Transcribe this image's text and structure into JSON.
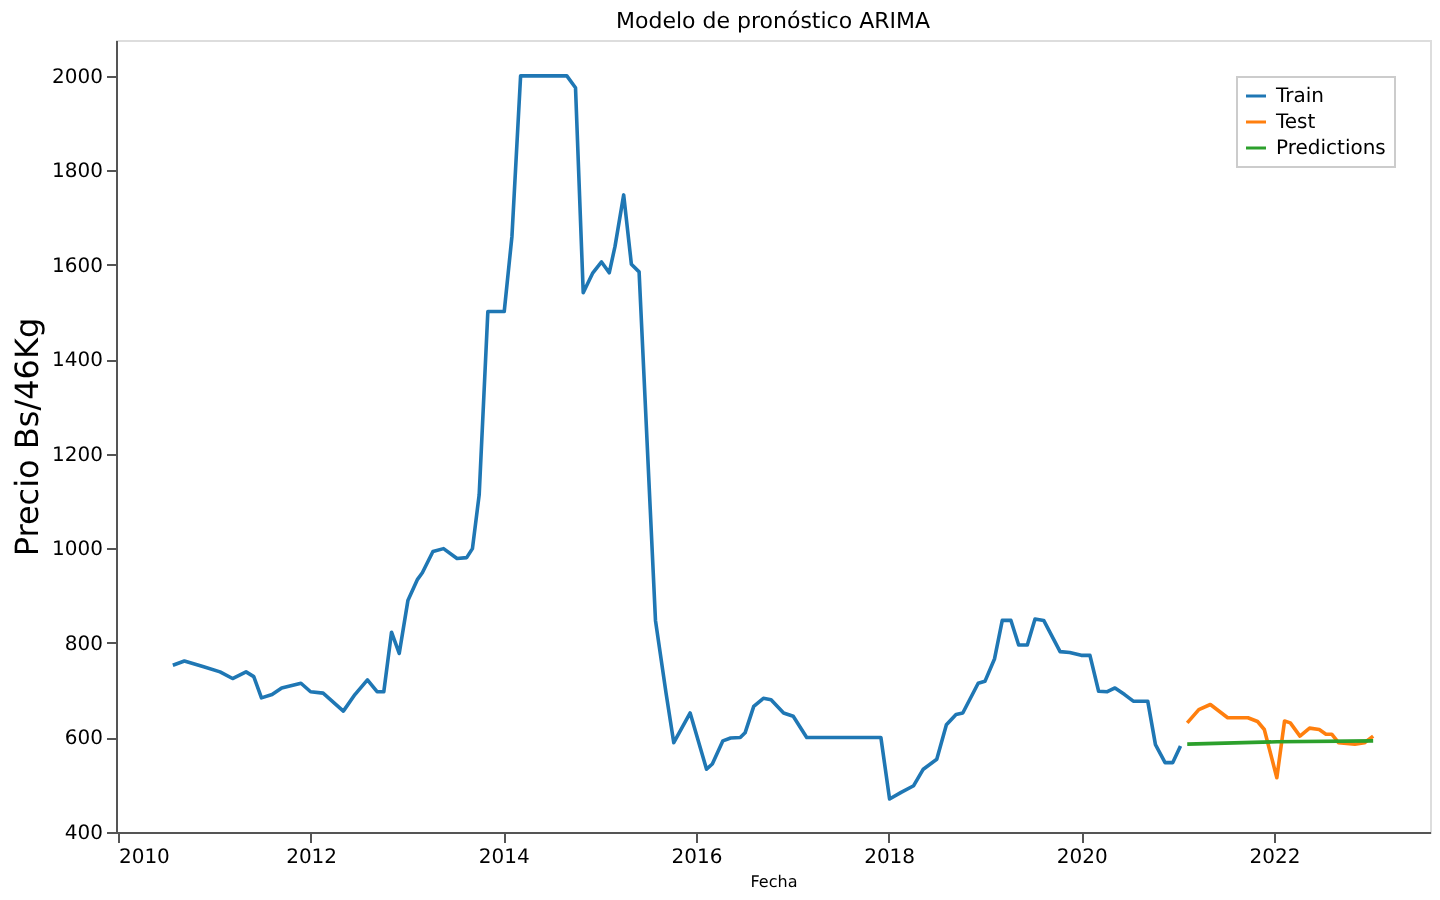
{
  "chart_data": {
    "type": "line",
    "title": "Modelo de pronóstico ARIMA",
    "xlabel": "Fecha",
    "ylabel": "Precio Bs/46Kg",
    "xlim": [
      2009.98,
      2023.62
    ],
    "ylim": [
      399,
      2076
    ],
    "xticks": [
      2010,
      2012,
      2014,
      2016,
      2018,
      2020,
      2022
    ],
    "yticks": [
      400,
      600,
      800,
      1000,
      1200,
      1400,
      1600,
      1800,
      2000
    ],
    "grid": false,
    "legend": "top right",
    "line_style": "solid",
    "marker": "none",
    "series": [
      {
        "name": "Train",
        "color": "#1f77b4",
        "x": [
          2010.57,
          2010.69,
          2010.89,
          2011.06,
          2011.19,
          2011.33,
          2011.41,
          2011.49,
          2011.6,
          2011.7,
          2011.9,
          2012.0,
          2012.13,
          2012.34,
          2012.46,
          2012.59,
          2012.69,
          2012.76,
          2012.84,
          2012.92,
          2013.01,
          2013.11,
          2013.16,
          2013.27,
          2013.38,
          2013.52,
          2013.62,
          2013.68,
          2013.75,
          2013.84,
          2014.01,
          2014.09,
          2014.18,
          2014.66,
          2014.75,
          2014.83,
          2014.93,
          2015.02,
          2015.1,
          2015.16,
          2015.25,
          2015.33,
          2015.41,
          2015.58,
          2015.69,
          2015.77,
          2015.94,
          2016.11,
          2016.17,
          2016.28,
          2016.36,
          2016.46,
          2016.51,
          2016.6,
          2016.7,
          2016.78,
          2016.91,
          2017.01,
          2017.15,
          2017.92,
          2018.01,
          2018.13,
          2018.26,
          2018.36,
          2018.5,
          2018.6,
          2018.7,
          2018.77,
          2018.93,
          2019.0,
          2019.1,
          2019.18,
          2019.27,
          2019.35,
          2019.44,
          2019.52,
          2019.61,
          2019.78,
          2019.88,
          2020.0,
          2020.09,
          2020.18,
          2020.27,
          2020.35,
          2020.45,
          2020.54,
          2020.69,
          2020.77,
          2020.87,
          2020.95,
          2021.03
        ],
        "values": [
          752,
          761,
          749,
          738,
          724,
          738,
          728,
          683,
          690,
          704,
          714,
          696,
          693,
          655,
          690,
          721,
          696,
          696,
          822,
          777,
          889,
          934,
          948,
          993,
          999,
          978,
          980,
          999,
          1113,
          1501,
          1501,
          1660,
          2000,
          2000,
          1975,
          1541,
          1583,
          1606,
          1583,
          1639,
          1748,
          1601,
          1585,
          847,
          693,
          588,
          651,
          532,
          543,
          592,
          598,
          599,
          609,
          665,
          682,
          679,
          651,
          644,
          599,
          599,
          469,
          483,
          497,
          532,
          553,
          626,
          648,
          651,
          714,
          718,
          766,
          847,
          847,
          795,
          795,
          850,
          847,
          781,
          779,
          773,
          773,
          697,
          696,
          704,
          690,
          676,
          676,
          584,
          546,
          546,
          581
        ]
      },
      {
        "name": "Test",
        "color": "#ff7f0e",
        "x": [
          2021.1,
          2021.22,
          2021.34,
          2021.52,
          2021.73,
          2021.83,
          2021.9,
          2022.03,
          2022.11,
          2022.17,
          2022.27,
          2022.37,
          2022.47,
          2022.54,
          2022.6,
          2022.67,
          2022.84,
          2022.94,
          2023.03
        ],
        "values": [
          630,
          658,
          669,
          641,
          641,
          633,
          616,
          514,
          634,
          630,
          602,
          619,
          616,
          606,
          606,
          588,
          585,
          588,
          602
        ]
      },
      {
        "name": "Predictions",
        "color": "#2ca02c",
        "x": [
          2021.1,
          2022.03,
          2023.03
        ],
        "values": [
          585,
          590,
          592
        ]
      }
    ]
  }
}
